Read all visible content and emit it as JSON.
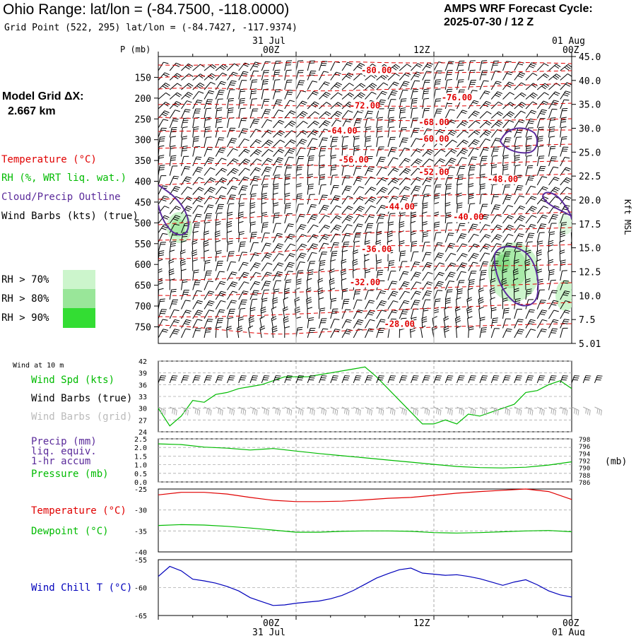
{
  "header": {
    "title": "Ohio Range:  lat/lon = (-84.7500, -118.0000)",
    "subtitle": "Grid Point (522, 295) lat/lon = (-84.7427, -117.9374)",
    "cycle_line1": "AMPS WRF Forecast Cycle:",
    "cycle_line2": "2025-07-30 / 12  Z",
    "grid_line1": "Model Grid ΔX:",
    "grid_line2": "2.667 km"
  },
  "colors": {
    "temperature": "#e00000",
    "rh": "#00bb00",
    "cloud": "#5a2a9a",
    "wind_barb": "#000000",
    "wind_barb_grid": "#aaaaaa",
    "wind_chill": "#0000bb",
    "rh70": "#ccf5cc",
    "rh80": "#99e699",
    "rh90": "#33dd33",
    "grid": "#aaaaaa"
  },
  "time_axis": {
    "top_dates": [
      "31 Jul",
      "01 Aug"
    ],
    "top_times": [
      "00Z",
      "12Z",
      "00Z"
    ],
    "bottom_times": [
      "00Z",
      "12Z",
      "00Z"
    ],
    "bottom_dates": [
      "31 Jul",
      "01 Aug"
    ]
  },
  "chart_data": [
    {
      "type": "line",
      "name": "upper-air",
      "ylabel": "P (mb)",
      "y2label": "Kft MSL",
      "yticks": [
        150,
        200,
        250,
        300,
        350,
        400,
        450,
        500,
        550,
        600,
        650,
        700,
        750
      ],
      "y2ticks": [
        "45.0",
        "40.0",
        "35.0",
        "30.0",
        "25.0",
        "22.5",
        "20.0",
        "17.5",
        "15.0",
        "12.5",
        "10.0",
        "7.5",
        "5.01"
      ],
      "ylim": [
        100,
        790
      ],
      "legend": [
        {
          "label": "Temperature (°C)",
          "color": "#e00000"
        },
        {
          "label": "RH (%, WRT liq. wat.)",
          "color": "#00bb00"
        },
        {
          "label": "Cloud/Precip Outline",
          "color": "#5a2a9a"
        },
        {
          "label": "Wind Barbs (kts) (true)",
          "color": "#000000"
        }
      ],
      "rh_legend": [
        "RH > 70%",
        "RH > 80%",
        "RH > 90%"
      ],
      "isotherm_labels": [
        {
          "text": "-80.00",
          "x_hour": 19,
          "p": 140
        },
        {
          "text": "-76.00",
          "x_hour": 26,
          "p": 205
        },
        {
          "text": "-72.00",
          "x_hour": 18,
          "p": 225
        },
        {
          "text": "-68.00",
          "x_hour": 24,
          "p": 265
        },
        {
          "text": "-64.00",
          "x_hour": 16,
          "p": 285
        },
        {
          "text": "-60.00",
          "x_hour": 24,
          "p": 305
        },
        {
          "text": "-56.00",
          "x_hour": 17,
          "p": 355
        },
        {
          "text": "-52.00",
          "x_hour": 24,
          "p": 385
        },
        {
          "text": "-48.00",
          "x_hour": 30,
          "p": 402
        },
        {
          "text": "-44.00",
          "x_hour": 21,
          "p": 468
        },
        {
          "text": "-40.00",
          "x_hour": 27,
          "p": 493
        },
        {
          "text": "-36.00",
          "x_hour": 19,
          "p": 570
        },
        {
          "text": "-32.00",
          "x_hour": 18,
          "p": 650
        },
        {
          "text": "-28.00",
          "x_hour": 21,
          "p": 750
        }
      ]
    },
    {
      "type": "line",
      "name": "wind-10m",
      "title": "Wind at 10 m",
      "yticks": [
        24,
        27,
        30,
        33,
        36,
        39,
        42
      ],
      "ylim": [
        24,
        42
      ],
      "legend": [
        "Wind Spd (kts)",
        "Wind Barbs (true)",
        "Wind Barbs (grid)"
      ],
      "series": [
        {
          "name": "Wind Spd (kts)",
          "x": [
            0,
            1,
            2,
            3,
            4,
            5,
            6,
            7,
            8,
            9,
            10,
            11,
            12,
            13,
            14,
            15,
            16,
            17,
            18,
            19,
            20,
            21,
            22,
            23,
            24,
            25,
            26,
            27,
            28,
            29,
            30,
            31,
            32,
            33,
            34,
            35,
            36
          ],
          "values": [
            30,
            25.5,
            28,
            32,
            31.5,
            33.5,
            34,
            35,
            35.5,
            36,
            37,
            38,
            38,
            38,
            38.5,
            39,
            39.5,
            40,
            40.5,
            38,
            35,
            32,
            29,
            26,
            26,
            27,
            26,
            28.5,
            28,
            29,
            30,
            31,
            34,
            34.5,
            36,
            37,
            35
          ]
        }
      ]
    },
    {
      "type": "line",
      "name": "precip-pressure",
      "legend": [
        "Precip (mm)",
        "liq. equiv.",
        "1-hr accum",
        "Pressure (mb)"
      ],
      "yticks": [
        "0.0",
        "0.5",
        "1.0",
        "1.5",
        "2.0",
        "2.5"
      ],
      "ylim": [
        0,
        2.5
      ],
      "y2label": "(mb)",
      "y2ticks": [
        786,
        788,
        790,
        792,
        794,
        796,
        798
      ],
      "y2lim": [
        786,
        798
      ],
      "series": [
        {
          "name": "Pressure (mb)",
          "x": [
            0,
            2,
            4,
            6,
            8,
            10,
            12,
            14,
            16,
            18,
            20,
            22,
            24,
            26,
            28,
            30,
            32,
            34,
            36
          ],
          "values": [
            796.6,
            796.4,
            795.7,
            795.4,
            794.9,
            795.3,
            794.6,
            793.9,
            793.3,
            792.7,
            792.1,
            791.5,
            790.9,
            790.3,
            790.0,
            789.9,
            790.1,
            790.7,
            791.6
          ]
        }
      ]
    },
    {
      "type": "line",
      "name": "temperature-dewpoint",
      "yticks": [
        -25,
        -30,
        -35,
        -40
      ],
      "ylim": [
        -40,
        -25
      ],
      "series": [
        {
          "name": "Temperature (°C)",
          "color": "#e00000",
          "x": [
            0,
            2,
            4,
            6,
            8,
            10,
            12,
            14,
            16,
            18,
            20,
            22,
            24,
            26,
            28,
            30,
            32,
            34,
            36
          ],
          "values": [
            -26.4,
            -25.8,
            -25.8,
            -26.2,
            -27.0,
            -27.7,
            -28.0,
            -28.0,
            -27.9,
            -27.6,
            -27.2,
            -27.0,
            -26.5,
            -26.0,
            -25.6,
            -25.3,
            -25.0,
            -25.6,
            -27.5
          ]
        },
        {
          "name": "Dewpoint (°C)",
          "color": "#00bb00",
          "x": [
            0,
            2,
            4,
            6,
            8,
            10,
            12,
            14,
            16,
            18,
            20,
            22,
            24,
            26,
            28,
            30,
            32,
            34,
            36
          ],
          "values": [
            -33.7,
            -33.5,
            -33.6,
            -33.9,
            -34.3,
            -34.8,
            -35.3,
            -35.3,
            -35.1,
            -35.0,
            -35.0,
            -35.1,
            -35.4,
            -35.5,
            -35.4,
            -35.2,
            -35.0,
            -34.9,
            -35.2
          ]
        }
      ]
    },
    {
      "type": "line",
      "name": "wind-chill",
      "yticks": [
        -55,
        -60,
        -65
      ],
      "ylim": [
        -65,
        -55
      ],
      "series": [
        {
          "name": "Wind Chill T (°C)",
          "color": "#0000bb",
          "x": [
            0,
            1,
            2,
            3,
            4,
            5,
            6,
            7,
            8,
            9,
            10,
            11,
            12,
            13,
            14,
            15,
            16,
            17,
            18,
            19,
            20,
            21,
            22,
            23,
            24,
            25,
            26,
            27,
            28,
            29,
            30,
            31,
            32,
            33,
            34,
            35,
            36
          ],
          "values": [
            -58.0,
            -56.2,
            -57.0,
            -58.5,
            -58.8,
            -59.2,
            -59.8,
            -60.6,
            -61.8,
            -62.5,
            -63.2,
            -63.1,
            -62.8,
            -62.6,
            -62.4,
            -62.0,
            -61.4,
            -60.5,
            -59.4,
            -58.3,
            -57.5,
            -56.8,
            -56.5,
            -57.4,
            -57.6,
            -57.8,
            -57.7,
            -58.0,
            -58.4,
            -59.0,
            -59.6,
            -59.0,
            -58.6,
            -59.5,
            -60.6,
            -61.3,
            -61.7
          ]
        }
      ]
    }
  ]
}
